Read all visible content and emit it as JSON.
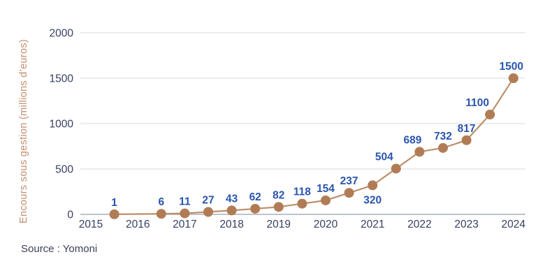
{
  "figure": {
    "source_label": "Source : Yomoni"
  },
  "chart_data": {
    "type": "line",
    "title": "",
    "xlabel": "",
    "ylabel": "Encours sous gestion (millions d’euros)",
    "x_ticks": [
      "2015",
      "2016",
      "2017",
      "2018",
      "2019",
      "2020",
      "2021",
      "2022",
      "2023",
      "2024"
    ],
    "y_ticks": [
      0,
      500,
      1000,
      1500,
      2000
    ],
    "xlim": [
      2015,
      2024
    ],
    "ylim": [
      0,
      2000
    ],
    "grid": "horizontal",
    "legend": "none",
    "series": [
      {
        "name": "Encours sous gestion",
        "points": [
          {
            "x": 2015.5,
            "y": 1
          },
          {
            "x": 2016.5,
            "y": 6
          },
          {
            "x": 2017.0,
            "y": 11
          },
          {
            "x": 2017.5,
            "y": 27
          },
          {
            "x": 2018.0,
            "y": 43
          },
          {
            "x": 2018.5,
            "y": 62
          },
          {
            "x": 2019.0,
            "y": 82
          },
          {
            "x": 2019.5,
            "y": 118
          },
          {
            "x": 2020.0,
            "y": 154
          },
          {
            "x": 2020.5,
            "y": 237
          },
          {
            "x": 2021.0,
            "y": 320,
            "label_position": "below"
          },
          {
            "x": 2021.5,
            "y": 504,
            "label_dx": -17
          },
          {
            "x": 2022.0,
            "y": 689,
            "label_dx": -10
          },
          {
            "x": 2022.5,
            "y": 732
          },
          {
            "x": 2023.0,
            "y": 817
          },
          {
            "x": 2023.5,
            "y": 1100,
            "label_dx": -18
          },
          {
            "x": 2024.0,
            "y": 1500,
            "label_dx": -3
          }
        ]
      }
    ],
    "colors": {
      "background": "#ffffff",
      "line": "#bc8f6a",
      "marker": "#b17c55",
      "data_label": "#2a55ae",
      "tick_label": "#363f63",
      "axis_line": "#7d85a3",
      "gridline": "#d8d8d8",
      "y_title": "#c48e70",
      "source_text": "#3d4257"
    }
  }
}
